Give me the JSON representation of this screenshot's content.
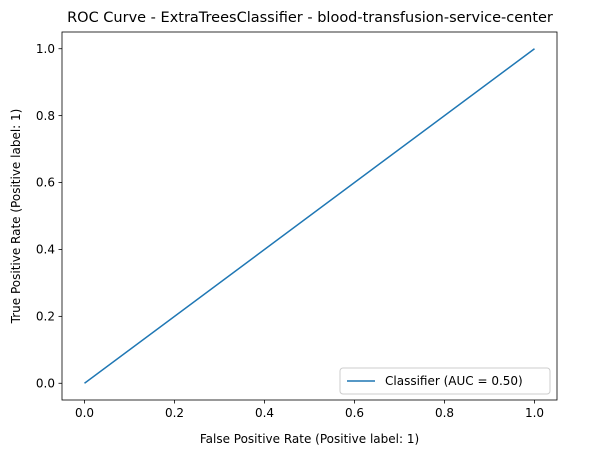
{
  "chart_data": {
    "type": "line",
    "title": "ROC Curve - ExtraTreesClassifier - blood-transfusion-service-center",
    "xlabel": "False Positive Rate (Positive label: 1)",
    "ylabel": "True Positive Rate (Positive label: 1)",
    "xlim": [
      -0.05,
      1.05
    ],
    "ylim": [
      -0.05,
      1.05
    ],
    "xticks": [
      0.0,
      0.2,
      0.4,
      0.6,
      0.8,
      1.0
    ],
    "yticks": [
      0.0,
      0.2,
      0.4,
      0.6,
      0.8,
      1.0
    ],
    "xtick_labels": [
      "0.0",
      "0.2",
      "0.4",
      "0.6",
      "0.8",
      "1.0"
    ],
    "ytick_labels": [
      "0.0",
      "0.2",
      "0.4",
      "0.6",
      "0.8",
      "1.0"
    ],
    "grid": false,
    "legend_position": "lower-right",
    "series": [
      {
        "name": "Classifier (AUC = 0.50)",
        "color": "#1f77b4",
        "x": [
          0.0,
          1.0
        ],
        "y": [
          0.0,
          1.0
        ]
      }
    ]
  }
}
